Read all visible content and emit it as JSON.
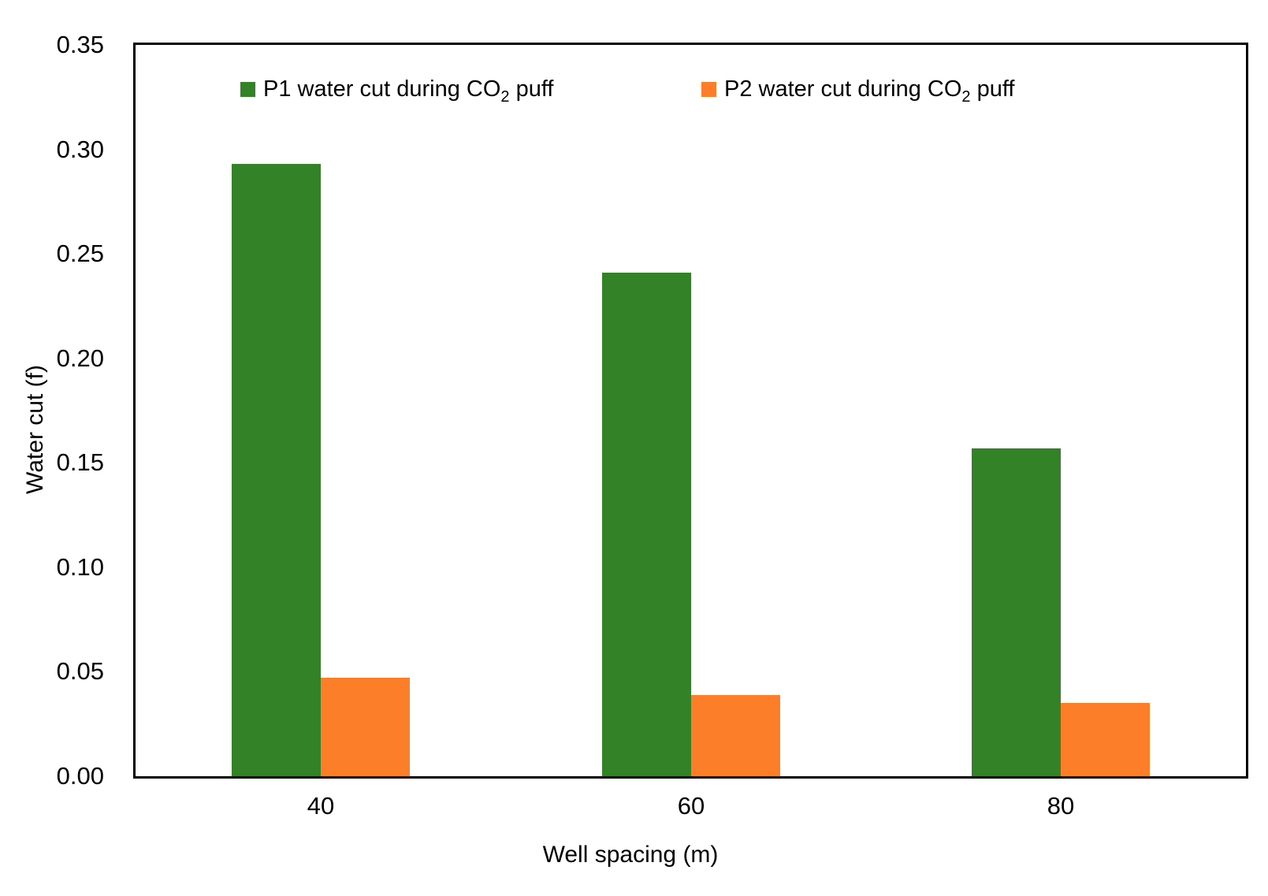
{
  "chart_data": {
    "type": "bar",
    "title": "",
    "xlabel": "Well spacing (m)",
    "ylabel": "Water cut (f)",
    "categories": [
      "40",
      "60",
      "80"
    ],
    "series": [
      {
        "name": "P1 water cut during CO2 puff",
        "name_parts": {
          "pre": "P1 water cut during CO",
          "sub": "2",
          "post": " puff"
        },
        "color": "#338227",
        "values": [
          0.293,
          0.241,
          0.157
        ]
      },
      {
        "name": "P2 water cut during CO2 puff",
        "name_parts": {
          "pre": "P2 water cut during CO",
          "sub": "2",
          "post": " puff"
        },
        "color": "#FD7E28",
        "values": [
          0.047,
          0.039,
          0.035
        ]
      }
    ],
    "ylim": [
      0,
      0.35
    ],
    "ytick_step": 0.05,
    "ytick_decimals": 2,
    "ytick_labels": [
      "0.00",
      "0.05",
      "0.10",
      "0.15",
      "0.20",
      "0.25",
      "0.30",
      "0.35"
    ],
    "grid": false,
    "legend_position": "top-inside",
    "axis_color": "#000000",
    "text_color": "#000000",
    "plot_background": "#ffffff"
  }
}
